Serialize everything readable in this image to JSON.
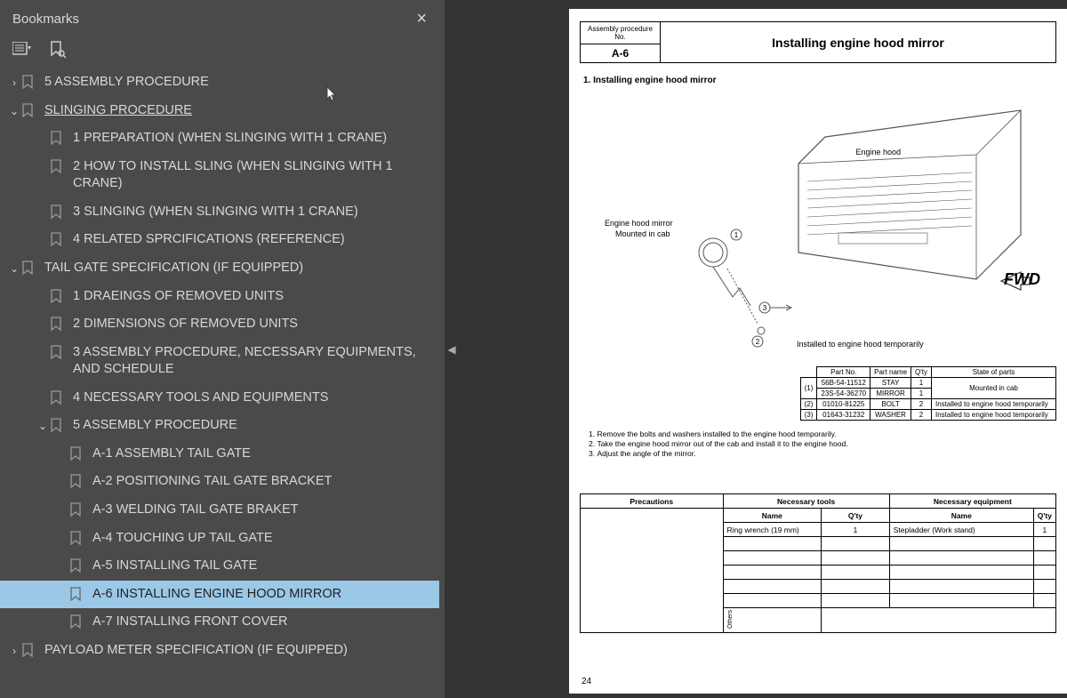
{
  "sidebar": {
    "title": "Bookmarks",
    "tree": [
      {
        "depth": 0,
        "chev": "right",
        "label": "5 ASSEMBLY PROCEDURE",
        "under": false,
        "sel": false
      },
      {
        "depth": 0,
        "chev": "down",
        "label": "SLINGING PROCEDURE",
        "under": true,
        "sel": false
      },
      {
        "depth": 1,
        "chev": "",
        "label": "1 PREPARATION (WHEN SLINGING WITH 1 CRANE)",
        "under": false,
        "sel": false
      },
      {
        "depth": 1,
        "chev": "",
        "label": "2 HOW TO INSTALL SLING (WHEN SLINGING WITH 1 CRANE)",
        "under": false,
        "sel": false
      },
      {
        "depth": 1,
        "chev": "",
        "label": "3 SLINGING (WHEN SLINGING WITH 1 CRANE)",
        "under": false,
        "sel": false
      },
      {
        "depth": 1,
        "chev": "",
        "label": "4 RELATED SPRCIFICATIONS (REFERENCE)",
        "under": false,
        "sel": false
      },
      {
        "depth": 0,
        "chev": "down",
        "label": "TAIL GATE SPECIFICATION (IF EQUIPPED)",
        "under": false,
        "sel": false
      },
      {
        "depth": 1,
        "chev": "",
        "label": "1 DRAEINGS OF REMOVED UNITS",
        "under": false,
        "sel": false
      },
      {
        "depth": 1,
        "chev": "",
        "label": "2 DIMENSIONS OF REMOVED UNITS",
        "under": false,
        "sel": false
      },
      {
        "depth": 1,
        "chev": "",
        "label": "3 ASSEMBLY PROCEDURE, NECESSARY EQUIPMENTS, AND SCHEDULE",
        "under": false,
        "sel": false
      },
      {
        "depth": 1,
        "chev": "",
        "label": "4 NECESSARY TOOLS AND EQUIPMENTS",
        "under": false,
        "sel": false
      },
      {
        "depth": 1,
        "chev": "down",
        "label": "5 ASSEMBLY PROCEDURE",
        "under": false,
        "sel": false
      },
      {
        "depth": 2,
        "chev": "",
        "label": "A-1 ASSEMBLY TAIL GATE",
        "under": false,
        "sel": false
      },
      {
        "depth": 2,
        "chev": "",
        "label": "A-2 POSITIONING TAIL GATE BRACKET",
        "under": false,
        "sel": false
      },
      {
        "depth": 2,
        "chev": "",
        "label": "A-3 WELDING TAIL GATE BRAKET",
        "under": false,
        "sel": false
      },
      {
        "depth": 2,
        "chev": "",
        "label": "A-4 TOUCHING UP TAIL GATE",
        "under": false,
        "sel": false
      },
      {
        "depth": 2,
        "chev": "",
        "label": "A-5 INSTALLING TAIL GATE",
        "under": false,
        "sel": false
      },
      {
        "depth": 2,
        "chev": "",
        "label": "A-6 INSTALLING ENGINE HOOD MIRROR",
        "under": false,
        "sel": true
      },
      {
        "depth": 2,
        "chev": "",
        "label": "A-7 INSTALLING FRONT COVER",
        "under": false,
        "sel": false
      },
      {
        "depth": 0,
        "chev": "right",
        "label": "PAYLOAD METER SPECIFICATION (IF EQUIPPED)",
        "under": false,
        "sel": false
      }
    ]
  },
  "doc": {
    "header": {
      "proc_label": "Assembly procedure No.",
      "code": "A-6",
      "title": "Installing engine hood mirror"
    },
    "section_title": "1.  Installing engine hood mirror",
    "diagram": {
      "hood_label": "Engine hood",
      "mirror_label1": "Engine hood mirror",
      "mirror_label2": "Mounted in cab",
      "installed_label": "Installed to engine hood temporarily",
      "fwd": "FWD",
      "c1": "1",
      "c2": "2",
      "c3": "3"
    },
    "parts": {
      "headers": [
        "",
        "Part No.",
        "Part name",
        "Q'ty",
        "State of parts"
      ],
      "rows": [
        [
          "(1)",
          "56B-54-11512",
          "STAY",
          "1",
          "Mounted in cab"
        ],
        [
          "",
          "23S-54-36270",
          "MIRROR",
          "1",
          ""
        ],
        [
          "(2)",
          "01010-81225",
          "BOLT",
          "2",
          "Installed to engine hood temporarily"
        ],
        [
          "(3)",
          "01643-31232",
          "WASHER",
          "2",
          "Installed to engine hood temporarily"
        ]
      ]
    },
    "instructions": [
      "Remove the bolts and washers installed to the engine hood temporarily.",
      "Take the engine hood mirror out of the cab and install it to the engine hood.",
      "Adjust the angle of the mirror."
    ],
    "bottom": {
      "h_prec": "Precautions",
      "h_tools": "Necessary tools",
      "h_equip": "Necessary equipment",
      "h_name": "Name",
      "h_qty": "Q'ty",
      "tool_name": "Ring wrench (19 mm)",
      "tool_qty": "1",
      "equip_name": "Stepladder (Work stand)",
      "equip_qty": "1",
      "others": "Others"
    },
    "page_num": "24"
  }
}
